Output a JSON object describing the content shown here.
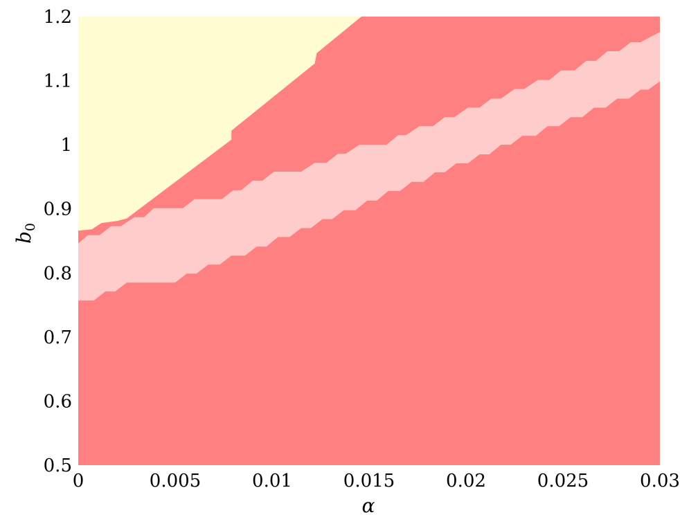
{
  "chart_data": {
    "type": "area",
    "xlabel": "α",
    "ylabel": "b",
    "ylabel_subscript": "0",
    "xlim": [
      0,
      0.03
    ],
    "ylim": [
      0.5,
      1.2
    ],
    "xticks": [
      "0",
      "0.005",
      "0.01",
      "0.015",
      "0.02",
      "0.025",
      "0.03"
    ],
    "yticks": [
      "0.5",
      "0.6",
      "0.7",
      "0.8",
      "0.9",
      "1",
      "1.1",
      "1.2"
    ],
    "grid": false,
    "legend": "none",
    "colors": {
      "red": "#FF8080",
      "pink": "#FFCCCC",
      "yellow": "#FFFCD2"
    },
    "regions": [
      {
        "color": "red",
        "points": [
          [
            0,
            0.5
          ],
          [
            0.03,
            0.5
          ],
          [
            0.03,
            1.2
          ],
          [
            0,
            1.2
          ]
        ]
      },
      {
        "color": "yellow",
        "points": [
          [
            0,
            0.866
          ],
          [
            0.0007,
            0.868
          ],
          [
            0.0012,
            0.878
          ],
          [
            0.002,
            0.881
          ],
          [
            0.0025,
            0.885
          ],
          [
            0.0079,
            1.008
          ],
          [
            0.0079,
            1.022
          ],
          [
            0.0122,
            1.127
          ],
          [
            0.0123,
            1.143
          ],
          [
            0.0146,
            1.2
          ],
          [
            0,
            1.2
          ]
        ]
      },
      {
        "color": "pink",
        "points": [
          [
            0,
            0.846
          ],
          [
            0.0005,
            0.859
          ],
          [
            0.0011,
            0.859
          ],
          [
            0.0017,
            0.873
          ],
          [
            0.0022,
            0.873
          ],
          [
            0.0029,
            0.887
          ],
          [
            0.0034,
            0.887
          ],
          [
            0.0039,
            0.901
          ],
          [
            0.0054,
            0.901
          ],
          [
            0.006,
            0.915
          ],
          [
            0.0074,
            0.915
          ],
          [
            0.008,
            0.929
          ],
          [
            0.0084,
            0.929
          ],
          [
            0.009,
            0.944
          ],
          [
            0.0095,
            0.944
          ],
          [
            0.0101,
            0.958
          ],
          [
            0.0115,
            0.958
          ],
          [
            0.0122,
            0.972
          ],
          [
            0.0128,
            0.972
          ],
          [
            0.0134,
            0.986
          ],
          [
            0.0138,
            0.986
          ],
          [
            0.0145,
            1.0
          ],
          [
            0.0159,
            1.0
          ],
          [
            0.0165,
            1.015
          ],
          [
            0.0169,
            1.015
          ],
          [
            0.0176,
            1.029
          ],
          [
            0.0183,
            1.029
          ],
          [
            0.0189,
            1.043
          ],
          [
            0.0194,
            1.043
          ],
          [
            0.0201,
            1.058
          ],
          [
            0.0207,
            1.058
          ],
          [
            0.0213,
            1.072
          ],
          [
            0.0218,
            1.072
          ],
          [
            0.0225,
            1.087
          ],
          [
            0.023,
            1.087
          ],
          [
            0.0237,
            1.101
          ],
          [
            0.0243,
            1.101
          ],
          [
            0.0249,
            1.116
          ],
          [
            0.0256,
            1.116
          ],
          [
            0.0262,
            1.131
          ],
          [
            0.0267,
            1.131
          ],
          [
            0.0273,
            1.146
          ],
          [
            0.0279,
            1.146
          ],
          [
            0.0285,
            1.16
          ],
          [
            0.029,
            1.16
          ],
          [
            0.03,
            1.176
          ],
          [
            0.03,
            1.099
          ],
          [
            0.0294,
            1.086
          ],
          [
            0.029,
            1.086
          ],
          [
            0.0284,
            1.072
          ],
          [
            0.0278,
            1.072
          ],
          [
            0.0272,
            1.058
          ],
          [
            0.0266,
            1.058
          ],
          [
            0.026,
            1.043
          ],
          [
            0.0254,
            1.043
          ],
          [
            0.0248,
            1.029
          ],
          [
            0.0242,
            1.029
          ],
          [
            0.0236,
            1.014
          ],
          [
            0.0229,
            1.014
          ],
          [
            0.0223,
            1.0
          ],
          [
            0.0218,
            1.0
          ],
          [
            0.0212,
            0.985
          ],
          [
            0.0207,
            0.985
          ],
          [
            0.0201,
            0.971
          ],
          [
            0.0195,
            0.971
          ],
          [
            0.0189,
            0.957
          ],
          [
            0.0184,
            0.957
          ],
          [
            0.0178,
            0.942
          ],
          [
            0.0172,
            0.942
          ],
          [
            0.0166,
            0.928
          ],
          [
            0.016,
            0.928
          ],
          [
            0.0154,
            0.913
          ],
          [
            0.0149,
            0.913
          ],
          [
            0.0143,
            0.898
          ],
          [
            0.0137,
            0.898
          ],
          [
            0.0131,
            0.884
          ],
          [
            0.0126,
            0.884
          ],
          [
            0.012,
            0.87
          ],
          [
            0.0115,
            0.87
          ],
          [
            0.0109,
            0.856
          ],
          [
            0.0103,
            0.856
          ],
          [
            0.0097,
            0.841
          ],
          [
            0.0092,
            0.841
          ],
          [
            0.0086,
            0.827
          ],
          [
            0.0079,
            0.827
          ],
          [
            0.0073,
            0.813
          ],
          [
            0.0067,
            0.813
          ],
          [
            0.0061,
            0.799
          ],
          [
            0.0056,
            0.799
          ],
          [
            0.005,
            0.785
          ],
          [
            0.0038,
            0.785
          ],
          [
            0.0032,
            0.785
          ],
          [
            0.0025,
            0.785
          ],
          [
            0.0019,
            0.771
          ],
          [
            0.0014,
            0.771
          ],
          [
            0.0008,
            0.757
          ],
          [
            0,
            0.757
          ]
        ]
      }
    ]
  }
}
